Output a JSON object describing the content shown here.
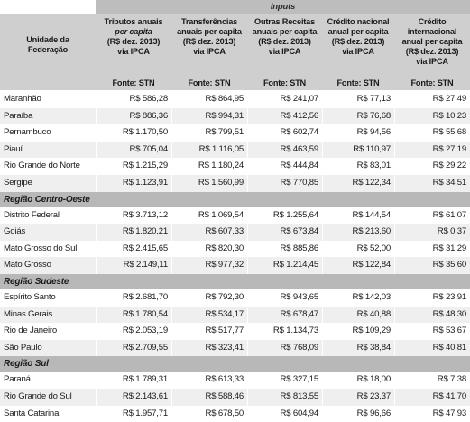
{
  "table": {
    "group_header": "Inputs",
    "columns": [
      {
        "line1": "Unidade da",
        "line2": "Federação"
      },
      {
        "line1": "Tributos anuais",
        "line2": "per capita",
        "line3": "(R$ dez. 2013)",
        "line4": "via IPCA"
      },
      {
        "line1": "Transferências",
        "line2": "anuais per capita",
        "line3": "(R$ dez. 2013)",
        "line4": "via IPCA"
      },
      {
        "line1": "Outras Receitas",
        "line2": "anuais per capita",
        "line3": "(R$ dez. 2013)",
        "line4": "via IPCA"
      },
      {
        "line1": "Crédito nacional",
        "line2": "anual per capita",
        "line3": "(R$ dez. 2013)",
        "line4": "via IPCA"
      },
      {
        "line1": "Crédito internacional",
        "line2": "anual per capita",
        "line3": "(R$ dez. 2013)",
        "line4": "via IPCA"
      }
    ],
    "source_label": "Fonte: STN",
    "top_rows": [
      [
        "Maranhão",
        "R$ 586,28",
        "R$ 864,95",
        "R$ 241,07",
        "R$ 77,13",
        "R$ 27,49"
      ],
      [
        "Paraíba",
        "R$ 886,36",
        "R$ 994,31",
        "R$ 412,56",
        "R$ 76,68",
        "R$ 10,23"
      ],
      [
        "Pernambuco",
        "R$ 1.170,50",
        "R$ 799,51",
        "R$ 602,74",
        "R$ 94,56",
        "R$ 55,68"
      ],
      [
        "Piauí",
        "R$ 705,04",
        "R$ 1.116,05",
        "R$ 463,59",
        "R$ 110,97",
        "R$ 27,19"
      ],
      [
        "Rio Grande do Norte",
        "R$ 1.215,29",
        "R$ 1.180,24",
        "R$ 444,84",
        "R$ 83,01",
        "R$ 29,22"
      ],
      [
        "Sergipe",
        "R$ 1.123,91",
        "R$ 1.560,99",
        "R$ 770,85",
        "R$ 122,34",
        "R$ 34,51"
      ]
    ],
    "regions": [
      {
        "name": "Região Centro-Oeste",
        "rows": [
          [
            "Distrito Federal",
            "R$ 3.713,12",
            "R$ 1.069,54",
            "R$ 1.255,64",
            "R$ 144,54",
            "R$ 61,07"
          ],
          [
            "Goiás",
            "R$ 1.820,21",
            "R$ 607,33",
            "R$ 673,84",
            "R$ 213,60",
            "R$ 0,37"
          ],
          [
            "Mato Grosso do Sul",
            "R$ 2.415,65",
            "R$ 820,30",
            "R$ 885,86",
            "R$ 52,00",
            "R$ 31,29"
          ],
          [
            "Mato Grosso",
            "R$ 2.149,11",
            "R$ 977,32",
            "R$ 1.214,45",
            "R$ 122,84",
            "R$ 35,60"
          ]
        ]
      },
      {
        "name": "Região Sudeste",
        "rows": [
          [
            "Espírito Santo",
            "R$ 2.681,70",
            "R$ 792,30",
            "R$ 943,65",
            "R$ 142,03",
            "R$ 23,91"
          ],
          [
            "Minas Gerais",
            "R$ 1.780,54",
            "R$ 534,17",
            "R$ 678,47",
            "R$ 40,88",
            "R$ 48,30"
          ],
          [
            "Rio de Janeiro",
            "R$ 2.053,19",
            "R$ 517,77",
            "R$ 1.134,73",
            "R$ 109,29",
            "R$ 53,67"
          ],
          [
            "São Paulo",
            "R$ 2.709,55",
            "R$ 323,41",
            "R$ 768,09",
            "R$ 38,84",
            "R$ 40,81"
          ]
        ]
      },
      {
        "name": "Região Sul",
        "rows": [
          [
            "Paraná",
            "R$ 1.789,31",
            "R$ 613,33",
            "R$ 327,15",
            "R$ 18,00",
            "R$ 7,38"
          ],
          [
            "Rio Grande do Sul",
            "R$ 2.143,61",
            "R$ 588,46",
            "R$ 813,55",
            "R$ 23,37",
            "R$ 41,70"
          ],
          [
            "Santa Catarina",
            "R$ 1.957,71",
            "R$ 678,50",
            "R$ 604,94",
            "R$ 96,66",
            "R$ 47,93"
          ]
        ]
      }
    ]
  }
}
